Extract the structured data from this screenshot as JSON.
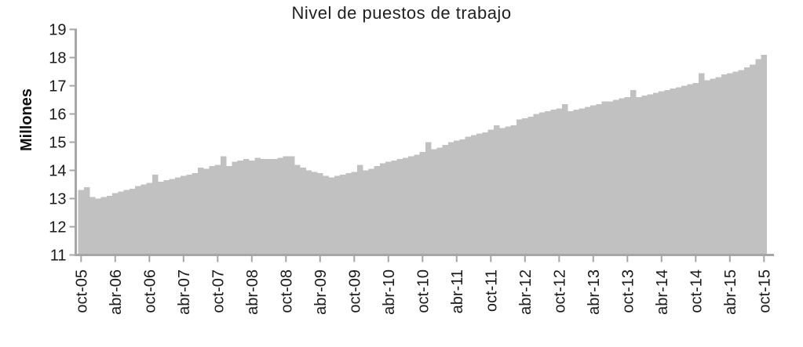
{
  "chart": {
    "title": "Nivel de puestos de trabajo",
    "y_axis_label": "Millones"
  },
  "chart_data": {
    "type": "bar",
    "subtype": "monthly-area-like-bars",
    "title": "Nivel de puestos de trabajo",
    "xlabel": "",
    "ylabel": "Millones",
    "ylim": [
      11,
      19
    ],
    "y_ticks": [
      19,
      18,
      17,
      16,
      15,
      14,
      13,
      12,
      11
    ],
    "grid": "off",
    "legend": "none",
    "x_start": "oct-05",
    "x_end": "oct-15",
    "x_frequency": "monthly",
    "x_tick_labels": [
      "oct-05",
      "abr-06",
      "oct-06",
      "abr-07",
      "oct-07",
      "abr-08",
      "oct-08",
      "abr-09",
      "oct-09",
      "abr-10",
      "oct-10",
      "abr-11",
      "oct-11",
      "abr-12",
      "oct-12",
      "abr-13",
      "oct-13",
      "abr-14",
      "oct-14",
      "abr-15",
      "oct-15"
    ],
    "x_ticks_every_n_months": 6,
    "values": [
      13.3,
      13.4,
      13.05,
      13.0,
      13.05,
      13.1,
      13.2,
      13.25,
      13.3,
      13.35,
      13.45,
      13.5,
      13.55,
      13.85,
      13.6,
      13.65,
      13.7,
      13.75,
      13.8,
      13.85,
      13.9,
      14.1,
      14.05,
      14.15,
      14.2,
      14.5,
      14.15,
      14.3,
      14.35,
      14.4,
      14.35,
      14.45,
      14.4,
      14.4,
      14.4,
      14.45,
      14.5,
      14.5,
      14.2,
      14.1,
      14.0,
      13.95,
      13.9,
      13.8,
      13.75,
      13.8,
      13.85,
      13.9,
      13.95,
      14.2,
      14.0,
      14.05,
      14.15,
      14.25,
      14.3,
      14.35,
      14.4,
      14.45,
      14.5,
      14.55,
      14.65,
      15.0,
      14.75,
      14.8,
      14.9,
      15.0,
      15.05,
      15.1,
      15.2,
      15.25,
      15.3,
      15.35,
      15.45,
      15.6,
      15.5,
      15.55,
      15.6,
      15.8,
      15.85,
      15.9,
      16.0,
      16.05,
      16.1,
      16.15,
      16.2,
      16.35,
      16.1,
      16.15,
      16.2,
      16.25,
      16.3,
      16.35,
      16.45,
      16.45,
      16.5,
      16.55,
      16.6,
      16.85,
      16.6,
      16.65,
      16.7,
      16.75,
      16.8,
      16.85,
      16.9,
      16.95,
      17.0,
      17.05,
      17.1,
      17.45,
      17.2,
      17.25,
      17.3,
      17.4,
      17.45,
      17.5,
      17.55,
      17.65,
      17.75,
      17.95,
      18.1
    ],
    "colors": {
      "series_fill": "#c1c1c1",
      "axis": "#a6a6a6",
      "text": "#1a1a1a"
    }
  }
}
